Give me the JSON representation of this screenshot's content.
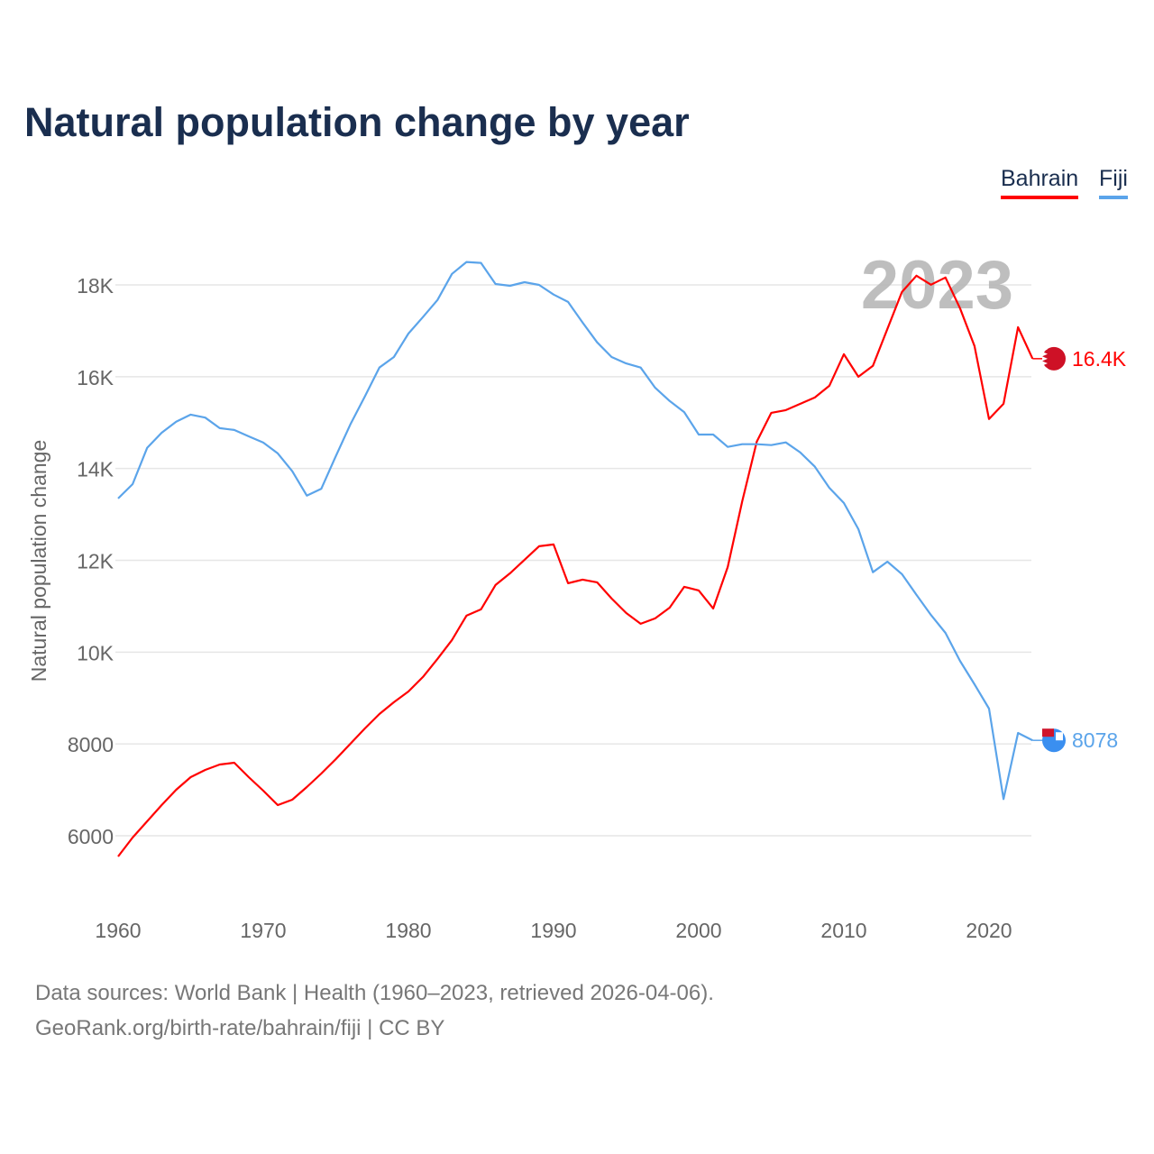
{
  "chart_data": {
    "type": "line",
    "title": "Natural population change by year",
    "xlabel": "",
    "ylabel": "Natural population change",
    "xlim": [
      1960,
      2023
    ],
    "ylim": [
      5000,
      18800
    ],
    "x_ticks": [
      1960,
      1970,
      1980,
      1990,
      2000,
      2010,
      2020
    ],
    "x_tick_labels": [
      "1960",
      "1970",
      "1980",
      "1990",
      "2000",
      "2010",
      "2020"
    ],
    "y_ticks": [
      6000,
      8000,
      10000,
      12000,
      14000,
      16000,
      18000
    ],
    "y_tick_labels": [
      "6000",
      "8000",
      "10K",
      "12K",
      "14K",
      "16K",
      "18K"
    ],
    "grid": true,
    "legend_position": "top-right",
    "year_watermark": "2023",
    "x": [
      1960,
      1961,
      1962,
      1963,
      1964,
      1965,
      1966,
      1967,
      1968,
      1969,
      1970,
      1971,
      1972,
      1973,
      1974,
      1975,
      1976,
      1977,
      1978,
      1979,
      1980,
      1981,
      1982,
      1983,
      1984,
      1985,
      1986,
      1987,
      1988,
      1989,
      1990,
      1991,
      1992,
      1993,
      1994,
      1995,
      1996,
      1997,
      1998,
      1999,
      2000,
      2001,
      2002,
      2003,
      2004,
      2005,
      2006,
      2007,
      2008,
      2009,
      2010,
      2011,
      2012,
      2013,
      2014,
      2015,
      2016,
      2017,
      2018,
      2019,
      2020,
      2021,
      2022,
      2023
    ],
    "series": [
      {
        "name": "Bahrain",
        "color": "#ff0000",
        "end_label": "16.4K",
        "values": [
          5548,
          5960,
          6314,
          6668,
          7002,
          7277,
          7434,
          7552,
          7591,
          7277,
          6982,
          6668,
          6786,
          7061,
          7356,
          7670,
          8004,
          8338,
          8652,
          8908,
          9143,
          9458,
          9851,
          10263,
          10794,
          10931,
          11462,
          11717,
          12012,
          12306,
          12346,
          11501,
          11580,
          11520,
          11167,
          10853,
          10617,
          10735,
          10970,
          11422,
          11344,
          10951,
          11855,
          13289,
          14585,
          15214,
          15273,
          15410,
          15548,
          15803,
          16491,
          16000,
          16236,
          17041,
          17846,
          18200,
          18004,
          18161,
          17493,
          16668,
          15077,
          15410,
          17080,
          16393
        ]
      },
      {
        "name": "Fiji",
        "color": "#5ba4ea",
        "end_label": "8078",
        "values": [
          13348,
          13660,
          14450,
          14780,
          15020,
          15175,
          15110,
          14880,
          14840,
          14700,
          14565,
          14330,
          13940,
          13410,
          13560,
          14270,
          14960,
          15570,
          16200,
          16430,
          16940,
          17300,
          17670,
          18240,
          18500,
          18480,
          18020,
          17980,
          18060,
          18000,
          17790,
          17630,
          17180,
          16750,
          16430,
          16290,
          16200,
          15760,
          15470,
          15230,
          14740,
          14740,
          14470,
          14530,
          14530,
          14510,
          14570,
          14350,
          14040,
          13580,
          13250,
          12680,
          11740,
          11970,
          11700,
          11250,
          10810,
          10420,
          9810,
          9300,
          8770,
          6800,
          8240,
          8078
        ]
      }
    ]
  },
  "source": {
    "line1": "Data sources: World Bank | Health (1960–2023, retrieved 2026-04-06).",
    "line2": "GeoRank.org/birth-rate/bahrain/fiji | CC BY"
  }
}
